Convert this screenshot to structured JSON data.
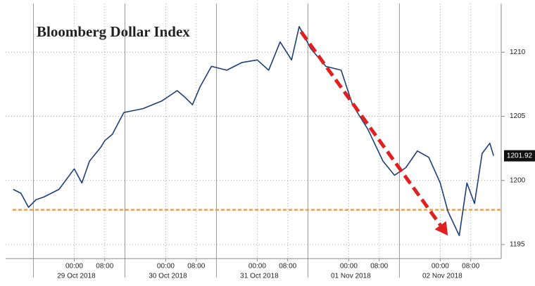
{
  "chart_data": {
    "type": "line",
    "title": "Bloomberg Dollar Index",
    "x": [
      "2018-10-28T08:00",
      "2018-10-28T10:00",
      "2018-10-28T12:00",
      "2018-10-28T14:00",
      "2018-10-28T16:00",
      "2018-10-28T20:00",
      "2018-10-29T00:00",
      "2018-10-29T02:00",
      "2018-10-29T04:00",
      "2018-10-29T07:00",
      "2018-10-29T08:00",
      "2018-10-29T10:00",
      "2018-10-29T13:00",
      "2018-10-29T18:00",
      "2018-10-29T23:00",
      "2018-10-30T03:00",
      "2018-10-30T05:00",
      "2018-10-30T07:00",
      "2018-10-30T09:00",
      "2018-10-30T12:00",
      "2018-10-30T16:00",
      "2018-10-30T20:00",
      "2018-10-31T00:00",
      "2018-10-31T03:00",
      "2018-10-31T06:00",
      "2018-10-31T09:00",
      "2018-10-31T11:00",
      "2018-10-31T14:00",
      "2018-10-31T18:00",
      "2018-10-31T22:00",
      "2018-11-01T01:00",
      "2018-11-01T05:00",
      "2018-11-01T09:00",
      "2018-11-01T12:00",
      "2018-11-01T15:00",
      "2018-11-01T18:00",
      "2018-11-01T21:00",
      "2018-11-02T00:00",
      "2018-11-02T02:00",
      "2018-11-02T05:00",
      "2018-11-02T07:00",
      "2018-11-02T09:00",
      "2018-11-02T11:00",
      "2018-11-02T13:00",
      "2018-11-02T14:00"
    ],
    "series": [
      {
        "name": "Bloomberg Dollar Index",
        "color": "#1d3f78",
        "values": [
          1199.3,
          1199.0,
          1197.9,
          1198.5,
          1198.7,
          1199.3,
          1200.9,
          1199.8,
          1201.5,
          1202.6,
          1203.1,
          1203.6,
          1205.3,
          1205.6,
          1206.2,
          1207.0,
          1206.5,
          1205.9,
          1207.3,
          1208.9,
          1208.6,
          1209.2,
          1209.4,
          1208.6,
          1210.8,
          1209.4,
          1212.0,
          1210.3,
          1208.9,
          1208.6,
          1205.9,
          1204.0,
          1201.5,
          1200.4,
          1201.0,
          1202.3,
          1201.8,
          1199.8,
          1197.6,
          1195.7,
          1199.8,
          1198.2,
          1202.1,
          1202.9,
          1201.92
        ]
      }
    ],
    "xlim": [
      "2018-10-28T06:00",
      "2018-11-02T16:00"
    ],
    "xticks": [
      {
        "value": "2018-10-29T00:00",
        "label": "00:00"
      },
      {
        "value": "2018-10-29T08:00",
        "label": "08:00"
      },
      {
        "value": "2018-10-30T00:00",
        "label": "00:00"
      },
      {
        "value": "2018-10-30T08:00",
        "label": "08:00"
      },
      {
        "value": "2018-10-31T00:00",
        "label": "00:00"
      },
      {
        "value": "2018-10-31T08:00",
        "label": "08:00"
      },
      {
        "value": "2018-11-01T00:00",
        "label": "00:00"
      },
      {
        "value": "2018-11-01T08:00",
        "label": "08:00"
      },
      {
        "value": "2018-11-02T00:00",
        "label": "00:00"
      },
      {
        "value": "2018-11-02T08:00",
        "label": "08:00"
      }
    ],
    "xticks_dates": [
      {
        "value": "2018-10-29T00:00",
        "label": "29 Oct 2018"
      },
      {
        "value": "2018-10-30T00:00",
        "label": "30 Oct 2018"
      },
      {
        "value": "2018-10-31T00:00",
        "label": "31 Oct 2018"
      },
      {
        "value": "2018-11-01T00:00",
        "label": "01 Nov 2018"
      },
      {
        "value": "2018-11-02T00:00",
        "label": "02 Nov 2018"
      }
    ],
    "ylim": [
      1193.9,
      1213.8
    ],
    "yticks": [
      1195,
      1200,
      1205,
      1210
    ],
    "grid": true,
    "reference_line": {
      "value": 1197.7,
      "color": "#f0a040"
    },
    "arrow": {
      "color": "#e02020",
      "from": {
        "x": "2018-10-31T11:30",
        "y": 1211.6
      },
      "to": {
        "x": "2018-11-02T02:00",
        "y": 1195.7
      }
    }
  }
}
